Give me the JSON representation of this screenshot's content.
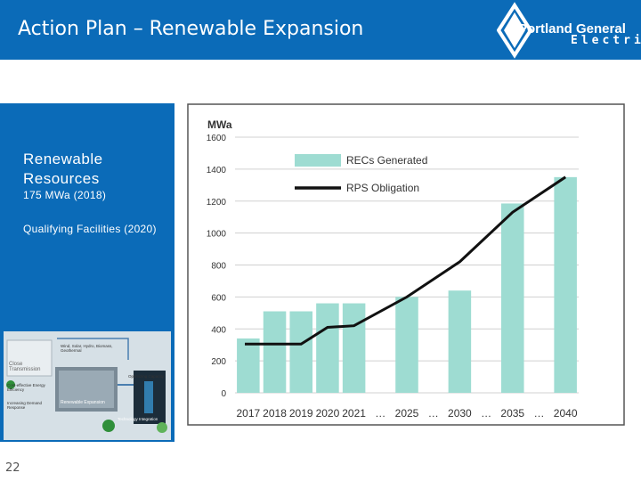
{
  "header": {
    "title": "Action Plan – Renewable Expansion",
    "logo_line1": "Portland General",
    "logo_line2": "Electric"
  },
  "left_panel": {
    "heading": "Renewable Resources",
    "line1": "175 MWa (2018)",
    "line2": "Qualifying Facilities (2020)",
    "diagram_labels": {
      "top": "Wind, Solar, Hydro, Biomass, Geothermal",
      "left_box": "Close Transmission",
      "mid1": "Cost-effective Energy Efficiency",
      "mid2": "Increasing Demand Response",
      "right_top": "Optimizing Capacity",
      "right_mid": "Renewable Expansion",
      "bottom": "Technology Integration"
    }
  },
  "page_number": "22",
  "colors": {
    "brand_blue": "#0b6bb8",
    "bar_color": "#9edcd2",
    "line_color": "#111111"
  },
  "chart_data": {
    "type": "bar",
    "title": "",
    "ylabel": "MWa",
    "xlabel": "",
    "ylim": [
      0,
      1600
    ],
    "yticks": [
      0,
      200,
      400,
      600,
      800,
      1000,
      1200,
      1400,
      1600
    ],
    "categories": [
      "2017",
      "2018",
      "2019",
      "2020",
      "2021",
      "2025",
      "2030",
      "2035",
      "2040"
    ],
    "ellipsis": "…",
    "grid": true,
    "legend_position": "top-left",
    "series": [
      {
        "name": "RECs Generated",
        "kind": "bar",
        "values": [
          340,
          510,
          510,
          560,
          560,
          600,
          640,
          1185,
          1350
        ]
      },
      {
        "name": "RPS Obligation",
        "kind": "line",
        "x": [
          0,
          1,
          2,
          3,
          4,
          5,
          6,
          7,
          8
        ],
        "values": [
          305,
          305,
          305,
          410,
          420,
          600,
          820,
          1130,
          1350
        ]
      }
    ]
  }
}
